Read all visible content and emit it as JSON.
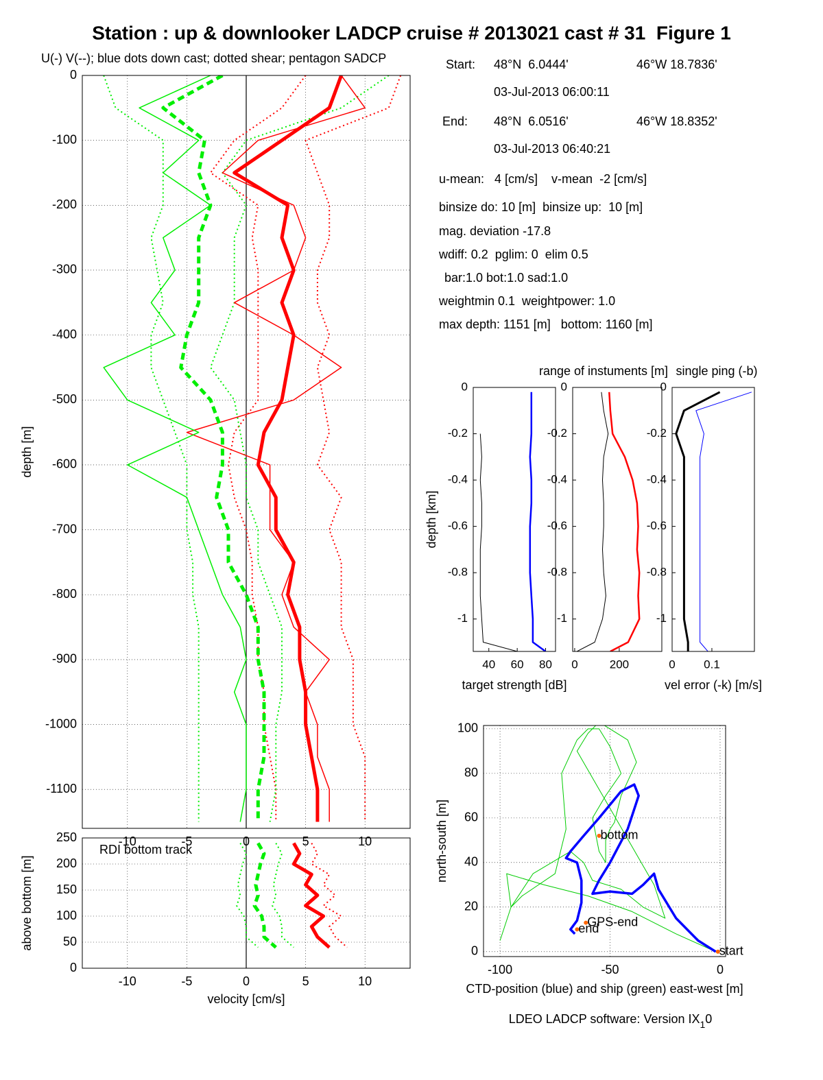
{
  "chart_data": [
    {
      "type": "line",
      "title": "Station : up & downlooker LADCP cruise # 2013021 cast # 31  Figure 1",
      "subtitle": "U(-) V(--); blue dots down cast; dotted shear; pentagon SADCP",
      "ylabel": "depth [m]",
      "grid": true,
      "xlim": [
        -13.8,
        13.8
      ],
      "ylim": [
        -1160,
        0
      ],
      "xticks": [
        -10,
        -5,
        0,
        5,
        10
      ],
      "yticks": [
        0,
        -100,
        -200,
        -300,
        -400,
        -500,
        -600,
        -700,
        -800,
        -900,
        -1000,
        -1100
      ],
      "depth": [
        0,
        -50,
        -100,
        -150,
        -200,
        -250,
        -300,
        -350,
        -400,
        -450,
        -500,
        -550,
        -600,
        -650,
        -700,
        -750,
        -800,
        -850,
        -900,
        -950,
        -1000,
        -1050,
        -1100,
        -1150
      ],
      "series": [
        {
          "color": "#ff0000",
          "dash": "dotted",
          "width": 2,
          "values": [
            13,
            12,
            5,
            6,
            7,
            7,
            6,
            6,
            7,
            6,
            6.5,
            7,
            6,
            8,
            7,
            8,
            8,
            8,
            9,
            9,
            9,
            10,
            10,
            10
          ]
        },
        {
          "color": "#ff0000",
          "dash": "dotted",
          "width": 2,
          "values": [
            5,
            3,
            -1,
            -3,
            1,
            0.5,
            1,
            1,
            1,
            1,
            1,
            -1,
            -1.5,
            -1,
            0,
            0.5,
            0.5,
            1,
            1,
            1.5,
            1.5,
            2,
            2.5,
            2.5
          ]
        },
        {
          "color": "#00ee00",
          "dash": "dotted",
          "width": 2,
          "values": [
            -12,
            -11,
            -7,
            -7,
            -7,
            -8,
            -7.5,
            -7,
            -8,
            -8,
            -7,
            -6,
            -5,
            -5,
            -5,
            -4.5,
            -4.5,
            -4,
            -4,
            -4,
            -4,
            -4,
            -4,
            -4
          ]
        },
        {
          "color": "#00ee00",
          "dash": "dotted",
          "width": 2,
          "values": [
            12,
            8,
            0,
            -2,
            0,
            -1,
            -1,
            -1,
            -2,
            -3,
            -1,
            -0.5,
            0,
            0,
            1,
            1,
            2,
            3,
            3,
            3,
            2.5,
            2.5,
            2.5,
            2
          ]
        },
        {
          "color": "#ff0000",
          "dash": "solid",
          "width": 1.5,
          "values": [
            8,
            10,
            1,
            -2,
            4,
            5,
            4,
            -1,
            4,
            8,
            4,
            -5,
            2,
            2,
            2,
            4,
            3,
            4,
            7,
            5,
            6,
            6,
            7,
            7
          ]
        },
        {
          "color": "#00ee00",
          "dash": "solid",
          "width": 1.5,
          "values": [
            -3,
            -9,
            -4,
            -7,
            -3,
            -7,
            -6,
            -8,
            -6,
            -12,
            -10,
            -4,
            -10,
            -5,
            -4,
            -3,
            -2,
            -0.5,
            0,
            -1,
            0,
            0,
            0,
            -0.5
          ]
        },
        {
          "color": "#ff0000",
          "dash": "solid",
          "width": 5,
          "values": [
            8,
            7,
            3,
            -1,
            3.5,
            3,
            4,
            3,
            4,
            3.5,
            3,
            1.5,
            1,
            2.5,
            2.5,
            4,
            3.5,
            4.5,
            4.5,
            5,
            5,
            5.5,
            6,
            6
          ]
        },
        {
          "color": "#00ee00",
          "dash": "dashed",
          "width": 5,
          "values": [
            -2,
            -7,
            -3.5,
            -4,
            -3,
            -4,
            -4,
            -4,
            -5,
            -5.5,
            -3,
            -2,
            -2,
            -2.5,
            -1.5,
            -1.5,
            0,
            1,
            1,
            1.5,
            1.5,
            1.5,
            1,
            1
          ]
        }
      ]
    },
    {
      "type": "line",
      "xlabel": "velocity [cm/s]",
      "ylabel": "above bottom [m]",
      "annotation": "RDI bottom track",
      "grid": true,
      "xlim": [
        -13.8,
        13.8
      ],
      "ylim": [
        0,
        250
      ],
      "xticks": [
        -10,
        -5,
        0,
        5,
        10
      ],
      "yticks": [
        0,
        50,
        100,
        150,
        200,
        250
      ],
      "depth": [
        240,
        220,
        200,
        180,
        160,
        140,
        120,
        100,
        80,
        60,
        40
      ],
      "series": [
        {
          "color": "#ff0000",
          "dash": "dotted",
          "width": 2,
          "values": [
            5.5,
            6,
            5.5,
            7,
            6.5,
            7.5,
            6.5,
            8,
            7,
            7.5,
            8.5
          ]
        },
        {
          "color": "#00ee00",
          "dash": "dotted",
          "width": 2,
          "values": [
            -0.5,
            0,
            -0.3,
            -0.5,
            -0.7,
            -0.5,
            -0.8,
            -0.2,
            0,
            0,
            1
          ]
        },
        {
          "color": "#00ee00",
          "dash": "dotted",
          "width": 2,
          "values": [
            2.5,
            3,
            2.7,
            2.5,
            2.3,
            2.5,
            2.2,
            2.8,
            3,
            3,
            4
          ]
        },
        {
          "color": "#ff0000",
          "dash": "solid",
          "width": 5,
          "values": [
            4,
            4.5,
            4,
            5.5,
            5,
            6,
            5,
            6.5,
            5.5,
            6,
            7
          ]
        },
        {
          "color": "#00ee00",
          "dash": "dashed",
          "width": 5,
          "values": [
            1,
            1.5,
            1.2,
            1,
            0.8,
            1,
            0.7,
            1.3,
            1.5,
            1.5,
            2.5
          ]
        }
      ]
    },
    {
      "type": "line",
      "xlabel": "target strength [dB]",
      "xlabel_color": "#0000ff",
      "ylabel": "depth [km]",
      "grid": false,
      "xlim": [
        29,
        87
      ],
      "ylim": [
        -1.14,
        0
      ],
      "xticks": [
        40,
        60,
        80
      ],
      "yticks": [
        0,
        -0.2,
        -0.4,
        -0.6,
        -0.8,
        -1
      ],
      "depth": [
        -0.02,
        -0.1,
        -0.2,
        -0.3,
        -0.4,
        -0.5,
        -0.6,
        -0.7,
        -0.8,
        -0.9,
        -1,
        -1.1,
        -1.14
      ],
      "series": [
        {
          "color": "#000000",
          "dash": "solid",
          "width": 1,
          "values": [
            null,
            null,
            34,
            35,
            34,
            35,
            35,
            34,
            34,
            34,
            35,
            36,
            60
          ]
        },
        {
          "color": "#0000ff",
          "dash": "solid",
          "width": 2.5,
          "values": [
            70,
            70,
            70,
            69,
            70,
            70,
            69,
            69,
            69,
            70,
            71,
            71,
            80
          ]
        }
      ]
    },
    {
      "type": "line",
      "title": "range of instuments [m]",
      "title_color": "#ff0000",
      "grid": false,
      "xlim": [
        -9,
        391
      ],
      "ylim": [
        -1.14,
        0
      ],
      "xticks": [
        0,
        200
      ],
      "yticks": [
        0,
        -0.2,
        -0.4,
        -0.6,
        -0.8,
        -1
      ],
      "depth": [
        -0.02,
        -0.1,
        -0.2,
        -0.3,
        -0.4,
        -0.5,
        -0.6,
        -0.7,
        -0.8,
        -0.9,
        -1,
        -1.1,
        -1.14
      ],
      "series": [
        {
          "color": "#000000",
          "dash": "solid",
          "width": 1,
          "values": [
            120,
            130,
            150,
            130,
            125,
            130,
            130,
            125,
            130,
            140,
            125,
            90,
            10
          ]
        },
        {
          "color": "#ff0000",
          "dash": "solid",
          "width": 2.5,
          "values": [
            155,
            160,
            170,
            225,
            260,
            280,
            285,
            280,
            290,
            285,
            290,
            240,
            160
          ]
        }
      ]
    },
    {
      "type": "line",
      "title": "single ping (-b)",
      "title_color": "#0000ff",
      "xlabel": "vel error (-k) [m/s]",
      "grid": false,
      "xlim": [
        0,
        0.207
      ],
      "ylim": [
        -1.14,
        0
      ],
      "xticks": [
        0,
        0.1
      ],
      "yticks": [
        0,
        -0.2,
        -0.4,
        -0.6,
        -0.8,
        -1
      ],
      "depth": [
        -0.02,
        -0.1,
        -0.2,
        -0.3,
        -0.4,
        -0.5,
        -0.6,
        -0.7,
        -0.8,
        -0.9,
        -1,
        -1.1,
        -1.14
      ],
      "series": [
        {
          "color": "#0000ff",
          "dash": "solid",
          "width": 1,
          "values": [
            0.2,
            0.06,
            0.08,
            0.07,
            0.07,
            0.07,
            0.07,
            0.07,
            0.07,
            0.07,
            0.07,
            0.07,
            0.09
          ]
        },
        {
          "color": "#000000",
          "dash": "solid",
          "width": 3,
          "values": [
            0.12,
            0.03,
            0.01,
            0.03,
            0.03,
            0.03,
            0.03,
            0.03,
            0.03,
            0.03,
            0.03,
            0.04,
            0.04
          ]
        }
      ]
    },
    {
      "type": "line",
      "xlabel": "CTD-position (blue) and ship (green) east-west [m]",
      "ylabel": "north-south [m]",
      "grid": true,
      "xlim": [
        -107.5,
        2.5
      ],
      "ylim": [
        -2.2,
        101.5
      ],
      "xticks": [
        -100,
        -50,
        0
      ],
      "yticks": [
        0,
        20,
        40,
        60,
        80,
        100
      ],
      "series": [
        {
          "color": "#00cc00",
          "dash": "solid",
          "width": 1,
          "x": [
            -2,
            -20,
            -40,
            -60,
            -80,
            -97,
            -95,
            -90,
            -75,
            -70,
            -72,
            -65,
            -60,
            -55,
            -50,
            -45,
            -52,
            -58,
            -55,
            -52,
            -52,
            -50,
            -48,
            -45,
            -38,
            -42,
            -55,
            -60,
            -65,
            -30,
            -25,
            -35,
            -45,
            -58,
            -62,
            -68,
            -85,
            -95,
            -100
          ],
          "values": [
            0,
            8,
            18,
            25,
            30,
            35,
            20,
            25,
            35,
            55,
            80,
            95,
            100,
            100,
            92,
            80,
            70,
            60,
            45,
            40,
            50,
            55,
            58,
            70,
            85,
            95,
            103,
            98,
            90,
            30,
            15,
            20,
            28,
            32,
            40,
            45,
            35,
            20,
            5
          ]
        },
        {
          "color": "#0000ff",
          "dash": "solid",
          "width": 3.5,
          "x": [
            -2,
            -10,
            -20,
            -28,
            -30,
            -35,
            -40,
            -50,
            -58,
            -55,
            -50,
            -42,
            -37,
            -39,
            -45,
            -55,
            -62,
            -68,
            -70,
            -65,
            -63,
            -63,
            -65,
            -68,
            -66
          ],
          "values": [
            0,
            5,
            15,
            28,
            35,
            30,
            26,
            27,
            26,
            32,
            40,
            55,
            70,
            75,
            72,
            60,
            52,
            45,
            42,
            40,
            32,
            22,
            14,
            10,
            8
          ]
        }
      ],
      "annotations": [
        {
          "text": "start",
          "x": -1,
          "y": 0
        },
        {
          "text": "end",
          "x": -65,
          "y": 10
        },
        {
          "text": "GPS-end",
          "x": -61,
          "y": 13
        },
        {
          "text": "bottom",
          "x": -55,
          "y": 52
        }
      ]
    }
  ],
  "info": [
    [
      "Start:",
      "48°N  6.0444'",
      "46°W 18.7836'"
    ],
    [
      "03-Jul-2013 06:00:11"
    ],
    [
      "End:",
      "48°N  6.0516'",
      "46°W 18.8352'"
    ],
    [
      "03-Jul-2013 06:40:21"
    ],
    [
      "u-mean:   4 [cm/s]    v-mean  -2 [cm/s]"
    ],
    [
      "binsize do: 10 [m]  binsize up:  10 [m]"
    ],
    [
      "mag. deviation -17.8"
    ],
    [
      "wdiff: 0.2  pglim: 0  elim 0.5"
    ],
    [
      "bar:1.0 bot:1.0 sad:1.0"
    ],
    [
      "weightmin 0.1  weightpower: 1.0"
    ],
    [
      "max depth: 1151 [m]   bottom: 1160 [m]"
    ]
  ],
  "footer": {
    "text": "LDEO LADCP software: Version IX",
    "sub": "1",
    "tail": "0"
  }
}
